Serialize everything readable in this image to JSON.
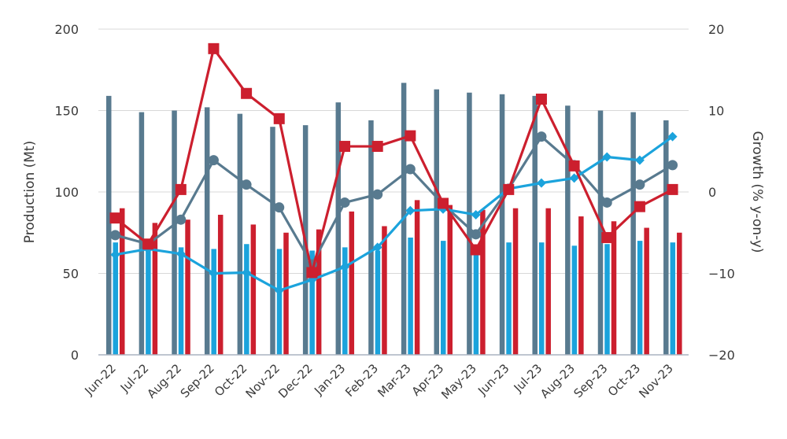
{
  "chart_data": {
    "type": "bar+line",
    "categories": [
      "Jun-22",
      "Jul-22",
      "Aug-22",
      "Sep-22",
      "Oct-22",
      "Nov-22",
      "Dec-22",
      "Jan-23",
      "Feb-23",
      "Mar-23",
      "Apr-23",
      "May-23",
      "Jun-23",
      "Jul-23",
      "Aug-23",
      "Sep-23",
      "Oct-23",
      "Nov-23"
    ],
    "ylabel": "Production (Mt)",
    "y2label": "Growth (% y-on-y)",
    "ylim": [
      0,
      200
    ],
    "y2lim": [
      -20,
      20
    ],
    "yticks": [
      0,
      50,
      100,
      150,
      200
    ],
    "y2ticks": [
      -20,
      -10,
      0,
      10,
      20
    ],
    "grid": true,
    "bar_series": [
      {
        "color": "#587a8f",
        "values": [
          159,
          149,
          150,
          152,
          148,
          140,
          141,
          155,
          144,
          167,
          163,
          161,
          160,
          159,
          153,
          150,
          149,
          144
        ]
      },
      {
        "color": "#1ba3dc",
        "values": [
          69,
          65,
          66,
          65,
          68,
          65,
          64,
          66,
          64,
          72,
          70,
          65,
          69,
          69,
          67,
          68,
          70,
          69
        ]
      },
      {
        "color": "#cc1f2e",
        "values": [
          90,
          81,
          83,
          86,
          80,
          75,
          77,
          88,
          79,
          95,
          92,
          89,
          90,
          90,
          85,
          82,
          78,
          75
        ]
      }
    ],
    "line_series": [
      {
        "color": "#587a8f",
        "marker": "circle",
        "axis": "right",
        "values": [
          -5.3,
          -6.4,
          -3.4,
          3.9,
          0.9,
          -1.9,
          -8.9,
          -1.3,
          -0.3,
          2.8,
          -1.5,
          -5.2,
          0.4,
          6.8,
          3.3,
          -1.3,
          0.9,
          3.3
        ]
      },
      {
        "color": "#1ba3dc",
        "marker": "diamond",
        "axis": "right",
        "values": [
          -7.7,
          -7.0,
          -7.6,
          -10.0,
          -9.9,
          -12.1,
          -10.8,
          -9.2,
          -6.8,
          -2.3,
          -2.1,
          -2.8,
          0.4,
          1.1,
          1.7,
          4.3,
          3.9,
          6.8
        ]
      },
      {
        "color": "#cc1f2e",
        "marker": "square",
        "axis": "right",
        "values": [
          -3.2,
          -6.4,
          0.3,
          17.6,
          12.1,
          9.0,
          -9.9,
          5.6,
          5.6,
          6.9,
          -1.4,
          -7.1,
          0.3,
          11.4,
          3.2,
          -5.6,
          -1.8,
          0.3
        ]
      }
    ]
  }
}
